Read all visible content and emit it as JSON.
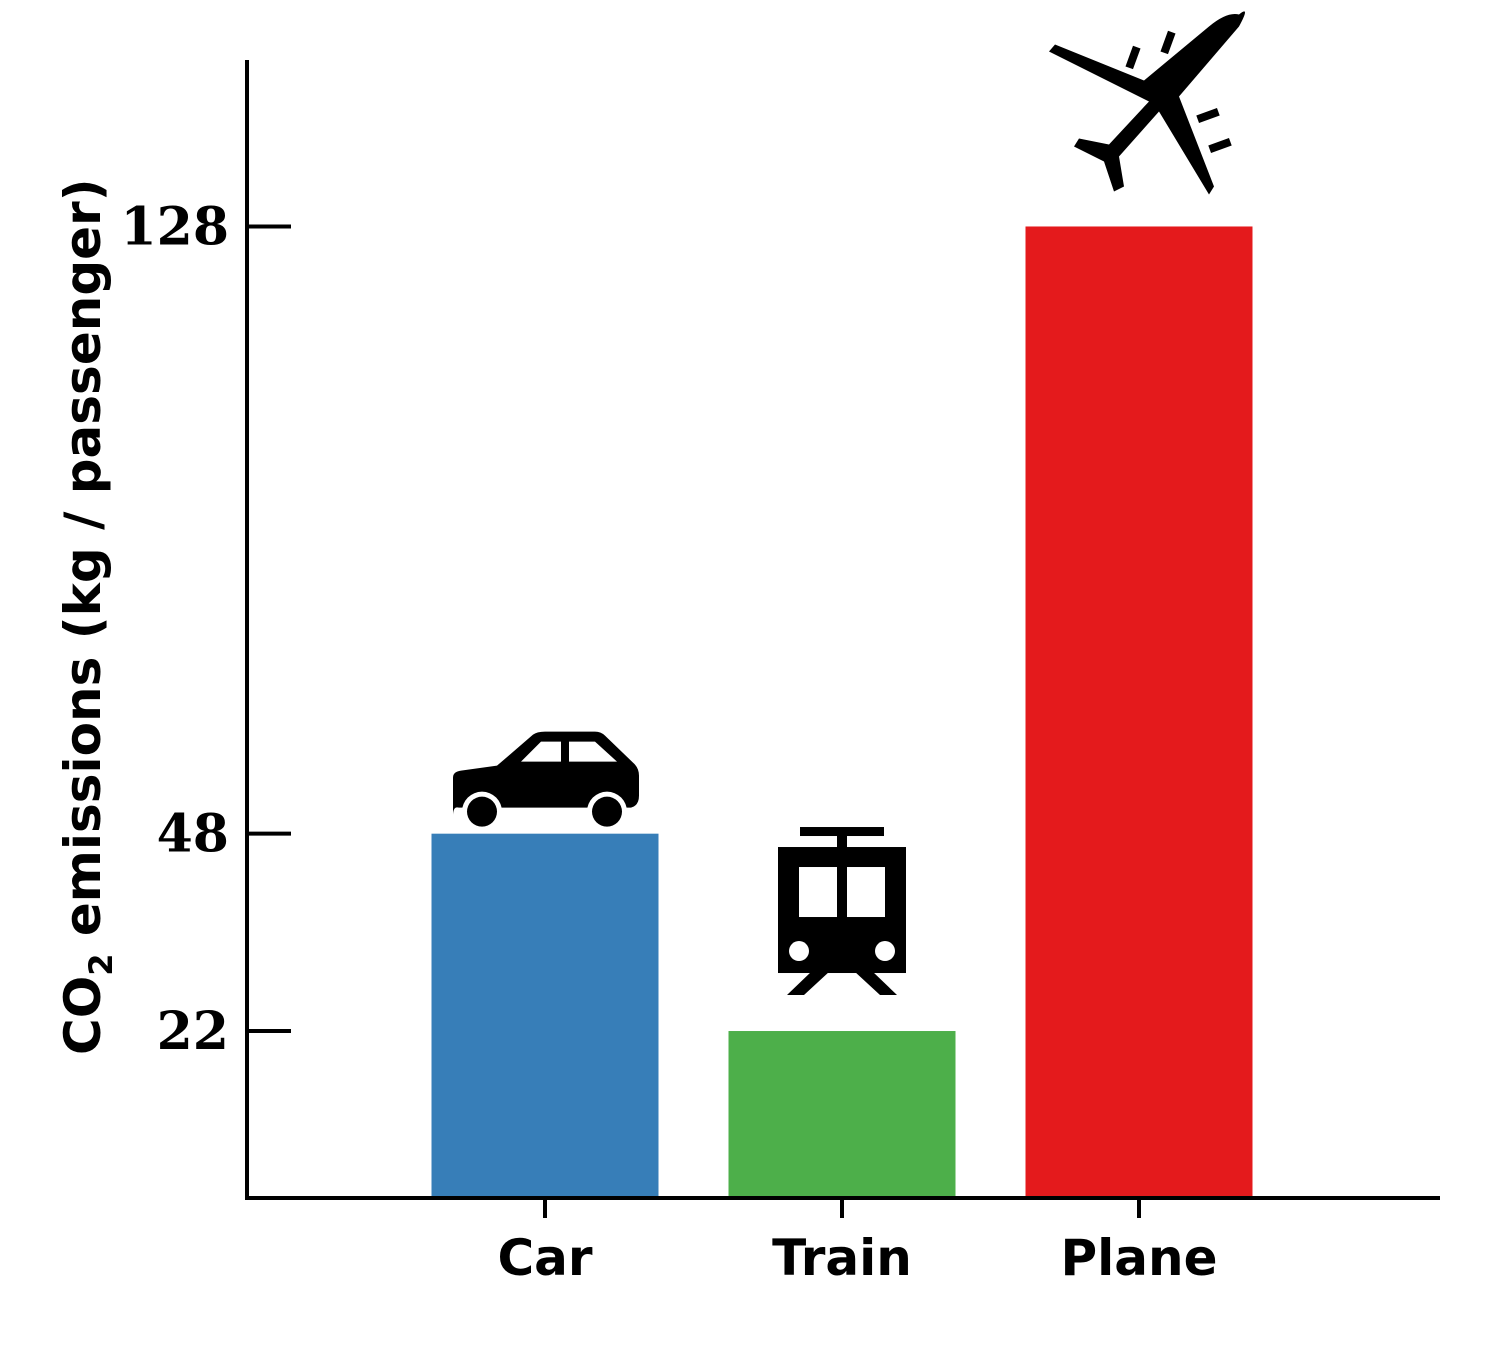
{
  "chart_data": {
    "type": "bar",
    "ylabel": {
      "prefix": "CO",
      "subscript": "2",
      "suffix": " emissions (kg / passenger)"
    },
    "categories": [
      "Car",
      "Train",
      "Plane"
    ],
    "values": [
      48,
      22,
      128
    ],
    "yticks": [
      22,
      48,
      128
    ],
    "ylim": [
      0,
      150
    ],
    "grid": false,
    "legend": "none",
    "bar_colors": [
      "#377eb8",
      "#4daf4a",
      "#e41a1c"
    ],
    "icons": [
      "car-icon",
      "train-icon",
      "plane-icon"
    ]
  }
}
